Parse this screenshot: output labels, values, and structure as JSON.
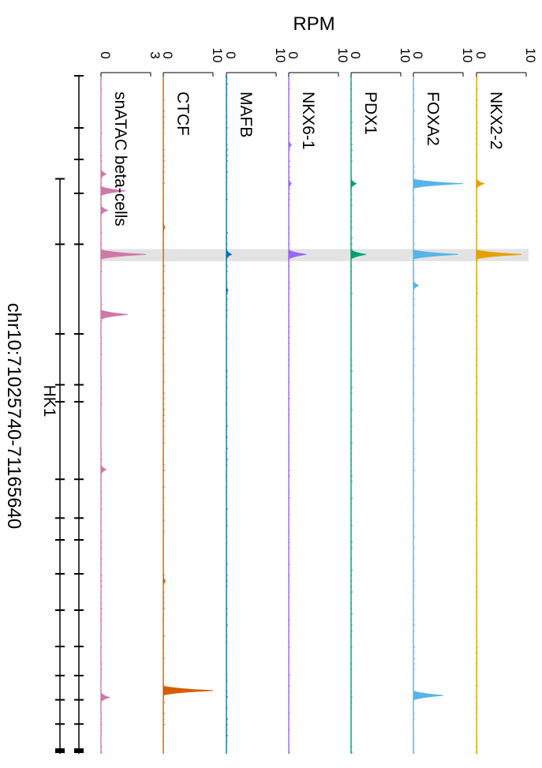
{
  "chart_data": {
    "type": "area",
    "orientation": "rotated 90° clockwise",
    "ylabel": "RPM",
    "xlabel": "chr10:71025740-71165640",
    "region": {
      "chrom": "chr10",
      "start": 71025740,
      "end": 71165640
    },
    "highlight": {
      "start": 71061500,
      "end": 71064000
    },
    "gene": "HK1",
    "tracks": [
      {
        "name": "NKX2-2",
        "color": "#E69F00",
        "ylim": [
          0,
          10
        ],
        "ticks": [
          "0",
          "10"
        ],
        "peaks": [
          {
            "pos": 71048000,
            "value": 1.5
          },
          {
            "pos": 71062600,
            "value": 9.0
          }
        ]
      },
      {
        "name": "FOXA2",
        "color": "#56B4E9",
        "ylim": [
          0,
          10
        ],
        "ticks": [
          "0",
          "10"
        ],
        "peaks": [
          {
            "pos": 71048000,
            "value": 10.0
          },
          {
            "pos": 71062600,
            "value": 9.0
          },
          {
            "pos": 71069000,
            "value": 1.0
          },
          {
            "pos": 71153600,
            "value": 6.0
          }
        ]
      },
      {
        "name": "PDX1",
        "color": "#009E73",
        "ylim": [
          0,
          10
        ],
        "ticks": [
          "0",
          "10"
        ],
        "peaks": [
          {
            "pos": 71048000,
            "value": 1.0
          },
          {
            "pos": 71062600,
            "value": 3.0
          }
        ]
      },
      {
        "name": "NKX6-1",
        "color": "#9966EE",
        "ylim": [
          0,
          10
        ],
        "ticks": [
          "0",
          "10"
        ],
        "peaks": [
          {
            "pos": 71040000,
            "value": 0.5
          },
          {
            "pos": 71048000,
            "value": 0.5
          },
          {
            "pos": 71062600,
            "value": 3.5
          }
        ]
      },
      {
        "name": "MAFB",
        "color": "#0072B2",
        "ylim": [
          0,
          10
        ],
        "ticks": [
          "0",
          "10"
        ],
        "peaks": [
          {
            "pos": 71062600,
            "value": 1.0
          },
          {
            "pos": 71070000,
            "value": 0.3
          }
        ]
      },
      {
        "name": "CTCF",
        "color": "#D55E00",
        "ylim": [
          0,
          10
        ],
        "ticks": [
          "0",
          "10"
        ],
        "peaks": [
          {
            "pos": 71152600,
            "value": 10.0
          },
          {
            "pos": 71130000,
            "value": 0.4
          },
          {
            "pos": 71057000,
            "value": 0.3
          }
        ]
      },
      {
        "name": "snATAC beta-cells",
        "color": "#CC79A7",
        "ylim": [
          0,
          3
        ],
        "ticks": [
          "0",
          "3"
        ],
        "peaks": [
          {
            "pos": 71046000,
            "value": 0.3
          },
          {
            "pos": 71049500,
            "value": 1.5
          },
          {
            "pos": 71053500,
            "value": 0.4
          },
          {
            "pos": 71062600,
            "value": 2.7
          },
          {
            "pos": 71075000,
            "value": 1.6
          },
          {
            "pos": 71107000,
            "value": 0.3
          },
          {
            "pos": 71154000,
            "value": 0.5
          }
        ]
      }
    ],
    "transcripts": [
      {
        "start": 71025740,
        "end": 71165640,
        "exons": [
          71025740,
          71036500,
          71043000,
          71050000,
          71060500,
          71079000,
          71089500,
          71093000,
          71109000,
          71117000,
          71121500,
          71128500,
          71136000,
          71143500,
          71149500,
          71154500,
          71159500,
          71165000
        ]
      },
      {
        "start": 71047000,
        "end": 71165640,
        "exons": [
          71047000,
          71060500,
          71079000,
          71089500,
          71093000,
          71109000,
          71117000,
          71121500,
          71128500,
          71136000,
          71143500,
          71149500,
          71154500,
          71159500,
          71165000
        ]
      }
    ]
  }
}
